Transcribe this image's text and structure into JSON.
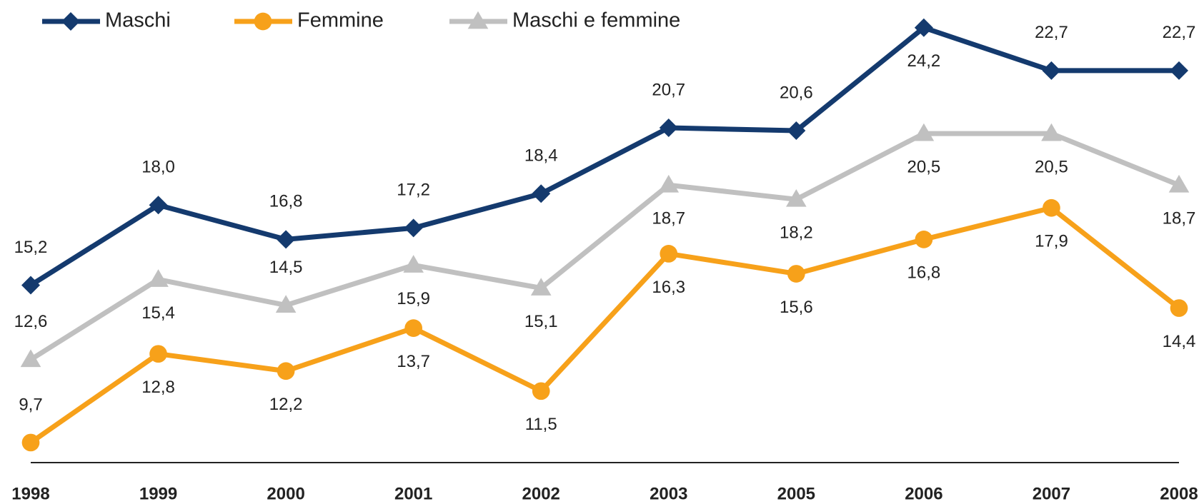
{
  "chart_data": {
    "type": "line",
    "categories": [
      "1998",
      "1999",
      "2000",
      "2001",
      "2002",
      "2003",
      "2005",
      "2006",
      "2007",
      "2008"
    ],
    "ylim": [
      9,
      25
    ],
    "legend": "top-left",
    "series": [
      {
        "name": "Maschi",
        "color": "#143a6e",
        "marker": "diamond",
        "values": [
          15.2,
          18.0,
          16.8,
          17.2,
          18.4,
          20.7,
          20.6,
          24.2,
          22.7,
          22.7
        ],
        "value_labels": [
          "15,2",
          "18,0",
          "16,8",
          "17,2",
          "18,4",
          "20,7",
          "20,6",
          "24,2",
          "22,7",
          "22,7"
        ]
      },
      {
        "name": "Femmine",
        "color": "#f7a11a",
        "marker": "circle",
        "values": [
          9.7,
          12.8,
          12.2,
          13.7,
          11.5,
          16.3,
          15.6,
          16.8,
          17.9,
          14.4
        ],
        "value_labels": [
          "9,7",
          "12,8",
          "12,2",
          "13,7",
          "11,5",
          "16,3",
          "15,6",
          "16,8",
          "17,9",
          "14,4"
        ]
      },
      {
        "name": "Maschi e femmine",
        "color": "#c0c0c0",
        "marker": "triangle",
        "values": [
          12.6,
          15.4,
          14.5,
          15.9,
          15.1,
          18.7,
          18.2,
          20.5,
          20.5,
          18.7
        ],
        "value_labels": [
          "12,6",
          "15,4",
          "14,5",
          "15,9",
          "15,1",
          "18,7",
          "18,2",
          "20,5",
          "20,5",
          "18,7"
        ]
      }
    ]
  }
}
